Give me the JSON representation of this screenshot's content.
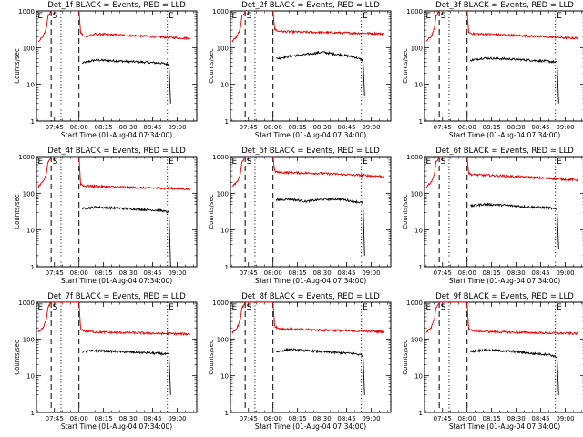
{
  "figure": {
    "x_label": "Start Time (01-Aug-04 07:34:00)",
    "y_label": "Counts/sec",
    "x_ticks": [
      "07:45",
      "08:00",
      "08:15",
      "08:30",
      "08:45",
      "09:00"
    ],
    "y_ticks": [
      "1",
      "10",
      "100",
      "1000"
    ],
    "colors": {
      "events": "#000000",
      "lld": "#e00000",
      "axes": "#000000"
    }
  },
  "chart_data": [
    {
      "type": "line",
      "title": "Det_1f BLACK = Events, RED = LLD",
      "scale": "log",
      "xlabel": "Start Time (01-Aug-04 07:34:00)",
      "ylabel": "Counts/sec",
      "ylim": [
        1,
        1000
      ],
      "x_ticks": [
        "07:45",
        "08:00",
        "08:15",
        "08:30",
        "08:45",
        "09:00"
      ],
      "markers": [
        {
          "label": "E",
          "x": "07:34"
        },
        {
          "label": "S",
          "x": "07:43"
        },
        {
          "label": "E",
          "x": "08:54"
        }
      ],
      "dashed_lines": [
        "07:43",
        "08:00"
      ],
      "dotted_lines": [
        "07:49",
        "08:54"
      ],
      "series": [
        {
          "name": "Events",
          "color": "#000000",
          "x": [
            "08:02",
            "08:10",
            "08:20",
            "08:30",
            "08:40",
            "08:50",
            "08:55",
            "08:56"
          ],
          "values": [
            38,
            46,
            44,
            42,
            40,
            38,
            35,
            3
          ]
        },
        {
          "name": "LLD",
          "color": "#e00000",
          "x": [
            "07:35",
            "07:38",
            "07:40",
            "07:41",
            "07:43",
            "07:50",
            "07:58",
            "08:00",
            "08:01",
            "08:03",
            "08:10",
            "08:20",
            "08:30",
            "08:40",
            "08:50",
            "09:00",
            "09:08"
          ],
          "values": [
            150,
            200,
            330,
            700,
            1000,
            1000,
            1000,
            1000,
            260,
            200,
            235,
            225,
            215,
            205,
            195,
            185,
            180
          ]
        }
      ]
    },
    {
      "type": "line",
      "title": "Det_2f BLACK = Events, RED = LLD",
      "scale": "log",
      "xlabel": "Start Time (01-Aug-04 07:34:00)",
      "ylabel": "Counts/sec",
      "ylim": [
        1,
        1000
      ],
      "x_ticks": [
        "07:45",
        "08:00",
        "08:15",
        "08:30",
        "08:45",
        "09:00"
      ],
      "markers": [
        {
          "label": "E",
          "x": "07:34"
        },
        {
          "label": "S",
          "x": "07:43"
        },
        {
          "label": "E",
          "x": "08:54"
        }
      ],
      "dashed_lines": [
        "07:43",
        "08:00"
      ],
      "dotted_lines": [
        "07:49",
        "08:54"
      ],
      "series": [
        {
          "name": "Events",
          "color": "#000000",
          "x": [
            "08:02",
            "08:10",
            "08:20",
            "08:30",
            "08:40",
            "08:50",
            "08:55",
            "08:56"
          ],
          "values": [
            50,
            58,
            65,
            75,
            65,
            55,
            45,
            5
          ]
        },
        {
          "name": "LLD",
          "color": "#e00000",
          "x": [
            "07:35",
            "07:38",
            "07:40",
            "07:41",
            "07:43",
            "07:50",
            "07:58",
            "08:00",
            "08:01",
            "08:03",
            "08:10",
            "08:20",
            "08:30",
            "08:40",
            "08:50",
            "09:00",
            "09:08"
          ],
          "values": [
            150,
            200,
            330,
            700,
            1000,
            1000,
            1000,
            1000,
            320,
            280,
            270,
            265,
            260,
            255,
            250,
            245,
            240
          ]
        }
      ]
    },
    {
      "type": "line",
      "title": "Det_3f BLACK = Events, RED = LLD",
      "scale": "log",
      "xlabel": "Start Time (01-Aug-04 07:34:00)",
      "ylabel": "Counts/sec",
      "ylim": [
        1,
        1000
      ],
      "x_ticks": [
        "07:45",
        "08:00",
        "08:15",
        "08:30",
        "08:45",
        "09:00"
      ],
      "markers": [
        {
          "label": "E",
          "x": "07:34"
        },
        {
          "label": "S",
          "x": "07:43"
        },
        {
          "label": "E",
          "x": "08:54"
        }
      ],
      "dashed_lines": [
        "07:43",
        "08:00"
      ],
      "dotted_lines": [
        "07:49",
        "08:54"
      ],
      "series": [
        {
          "name": "Events",
          "color": "#000000",
          "x": [
            "08:02",
            "08:10",
            "08:20",
            "08:30",
            "08:40",
            "08:50",
            "08:55",
            "08:56"
          ],
          "values": [
            45,
            52,
            50,
            48,
            45,
            42,
            40,
            3
          ]
        },
        {
          "name": "LLD",
          "color": "#e00000",
          "x": [
            "07:35",
            "07:38",
            "07:40",
            "07:41",
            "07:43",
            "07:50",
            "07:58",
            "08:00",
            "08:01",
            "08:03",
            "08:10",
            "08:20",
            "08:30",
            "08:40",
            "08:50",
            "09:00",
            "09:08"
          ],
          "values": [
            150,
            200,
            330,
            700,
            1000,
            1000,
            1000,
            1000,
            260,
            240,
            235,
            225,
            215,
            205,
            195,
            185,
            180
          ]
        }
      ]
    },
    {
      "type": "line",
      "title": "Det_4f BLACK = Events, RED = LLD",
      "scale": "log",
      "xlabel": "Start Time (01-Aug-04 07:34:00)",
      "ylabel": "Counts/sec",
      "ylim": [
        1,
        1000
      ],
      "x_ticks": [
        "07:45",
        "08:00",
        "08:15",
        "08:30",
        "08:45",
        "09:00"
      ],
      "markers": [
        {
          "label": "E",
          "x": "07:34"
        },
        {
          "label": "S",
          "x": "07:43"
        },
        {
          "label": "E",
          "x": "08:54"
        }
      ],
      "dashed_lines": [
        "07:43",
        "08:00"
      ],
      "dotted_lines": [
        "07:49",
        "08:54"
      ],
      "series": [
        {
          "name": "Events",
          "color": "#000000",
          "x": [
            "08:02",
            "08:10",
            "08:20",
            "08:30",
            "08:40",
            "08:50",
            "08:55",
            "08:56"
          ],
          "values": [
            38,
            42,
            40,
            38,
            36,
            34,
            30,
            1
          ]
        },
        {
          "name": "LLD",
          "color": "#e00000",
          "x": [
            "07:35",
            "07:38",
            "07:40",
            "07:41",
            "07:43",
            "07:50",
            "07:58",
            "08:00",
            "08:01",
            "08:03",
            "08:10",
            "08:20",
            "08:30",
            "08:40",
            "08:50",
            "09:00",
            "09:08"
          ],
          "values": [
            150,
            200,
            330,
            700,
            1000,
            1000,
            1000,
            1000,
            180,
            160,
            155,
            150,
            145,
            140,
            138,
            135,
            130
          ]
        }
      ]
    },
    {
      "type": "line",
      "title": "Det_5f BLACK = Events, RED = LLD",
      "scale": "log",
      "xlabel": "Start Time (01-Aug-04 07:34:00)",
      "ylabel": "Counts/sec",
      "ylim": [
        1,
        1000
      ],
      "x_ticks": [
        "07:45",
        "08:00",
        "08:15",
        "08:30",
        "08:45",
        "09:00"
      ],
      "markers": [
        {
          "label": "E",
          "x": "07:34"
        },
        {
          "label": "S",
          "x": "07:43"
        },
        {
          "label": "E",
          "x": "08:54"
        }
      ],
      "dashed_lines": [
        "07:43",
        "08:00"
      ],
      "dotted_lines": [
        "07:49",
        "08:54"
      ],
      "series": [
        {
          "name": "Events",
          "color": "#000000",
          "x": [
            "08:02",
            "08:10",
            "08:20",
            "08:30",
            "08:40",
            "08:50",
            "08:55",
            "08:56"
          ],
          "values": [
            65,
            70,
            60,
            68,
            70,
            60,
            55,
            2
          ]
        },
        {
          "name": "LLD",
          "color": "#e00000",
          "x": [
            "07:35",
            "07:38",
            "07:40",
            "07:41",
            "07:43",
            "07:50",
            "07:58",
            "08:00",
            "08:01",
            "08:03",
            "08:10",
            "08:20",
            "08:30",
            "08:40",
            "08:50",
            "09:00",
            "09:08"
          ],
          "values": [
            150,
            200,
            330,
            700,
            1000,
            1000,
            1000,
            1000,
            400,
            370,
            365,
            355,
            345,
            330,
            315,
            300,
            290
          ]
        }
      ]
    },
    {
      "type": "line",
      "title": "Det_6f BLACK = Events, RED = LLD",
      "scale": "log",
      "xlabel": "Start Time (01-Aug-04 07:34:00)",
      "ylabel": "Counts/sec",
      "ylim": [
        1,
        1000
      ],
      "x_ticks": [
        "07:45",
        "08:00",
        "08:15",
        "08:30",
        "08:45",
        "09:00"
      ],
      "markers": [
        {
          "label": "E",
          "x": "07:34"
        },
        {
          "label": "S",
          "x": "07:43"
        },
        {
          "label": "E",
          "x": "08:54"
        }
      ],
      "dashed_lines": [
        "07:43",
        "08:00"
      ],
      "dotted_lines": [
        "07:49",
        "08:54"
      ],
      "series": [
        {
          "name": "Events",
          "color": "#000000",
          "x": [
            "08:02",
            "08:10",
            "08:20",
            "08:30",
            "08:40",
            "08:50",
            "08:55",
            "08:56"
          ],
          "values": [
            45,
            50,
            48,
            45,
            42,
            40,
            36,
            3
          ]
        },
        {
          "name": "LLD",
          "color": "#e00000",
          "x": [
            "07:35",
            "07:38",
            "07:40",
            "07:41",
            "07:43",
            "07:50",
            "07:58",
            "08:00",
            "08:01",
            "08:03",
            "08:10",
            "08:20",
            "08:30",
            "08:40",
            "08:50",
            "09:00",
            "09:08"
          ],
          "values": [
            150,
            200,
            330,
            700,
            1000,
            1000,
            1000,
            1000,
            350,
            320,
            310,
            300,
            285,
            270,
            255,
            240,
            230
          ]
        }
      ]
    },
    {
      "type": "line",
      "title": "Det_7f BLACK = Events, RED = LLD",
      "scale": "log",
      "xlabel": "Start Time (01-Aug-04 07:34:00)",
      "ylabel": "Counts/sec",
      "ylim": [
        1,
        1000
      ],
      "x_ticks": [
        "07:45",
        "08:00",
        "08:15",
        "08:30",
        "08:45",
        "09:00"
      ],
      "markers": [
        {
          "label": "E",
          "x": "07:34"
        },
        {
          "label": "S",
          "x": "07:43"
        },
        {
          "label": "E",
          "x": "08:54"
        }
      ],
      "dashed_lines": [
        "07:43",
        "08:00"
      ],
      "dotted_lines": [
        "07:49",
        "08:54"
      ],
      "series": [
        {
          "name": "Events",
          "color": "#000000",
          "x": [
            "08:02",
            "08:10",
            "08:20",
            "08:30",
            "08:40",
            "08:50",
            "08:55",
            "08:56"
          ],
          "values": [
            45,
            48,
            46,
            44,
            42,
            40,
            38,
            3
          ]
        },
        {
          "name": "LLD",
          "color": "#e00000",
          "x": [
            "07:35",
            "07:38",
            "07:40",
            "07:41",
            "07:43",
            "07:50",
            "07:58",
            "08:00",
            "08:01",
            "08:03",
            "08:10",
            "08:20",
            "08:30",
            "08:40",
            "08:50",
            "09:00",
            "09:08"
          ],
          "values": [
            150,
            200,
            330,
            700,
            1000,
            1000,
            1000,
            1000,
            190,
            165,
            155,
            150,
            148,
            145,
            140,
            138,
            135
          ]
        }
      ]
    },
    {
      "type": "line",
      "title": "Det_8f BLACK = Events, RED = LLD",
      "scale": "log",
      "xlabel": "Start Time (01-Aug-04 07:34:00)",
      "ylabel": "Counts/sec",
      "ylim": [
        1,
        1000
      ],
      "x_ticks": [
        "07:45",
        "08:00",
        "08:15",
        "08:30",
        "08:45",
        "09:00"
      ],
      "markers": [
        {
          "label": "E",
          "x": "07:34"
        },
        {
          "label": "S",
          "x": "07:43"
        },
        {
          "label": "E",
          "x": "08:54"
        }
      ],
      "dashed_lines": [
        "07:43",
        "08:00"
      ],
      "dotted_lines": [
        "07:49",
        "08:54"
      ],
      "series": [
        {
          "name": "Events",
          "color": "#000000",
          "x": [
            "08:02",
            "08:10",
            "08:20",
            "08:30",
            "08:40",
            "08:50",
            "08:55",
            "08:56"
          ],
          "values": [
            45,
            52,
            48,
            45,
            42,
            40,
            36,
            3
          ]
        },
        {
          "name": "LLD",
          "color": "#e00000",
          "x": [
            "07:35",
            "07:38",
            "07:40",
            "07:41",
            "07:43",
            "07:50",
            "07:58",
            "08:00",
            "08:01",
            "08:03",
            "08:10",
            "08:20",
            "08:30",
            "08:40",
            "08:50",
            "09:00",
            "09:08"
          ],
          "values": [
            150,
            200,
            330,
            700,
            1000,
            1000,
            1000,
            1000,
            230,
            195,
            185,
            178,
            175,
            170,
            165,
            160,
            158
          ]
        }
      ]
    },
    {
      "type": "line",
      "title": "Det_9f BLACK = Events, RED = LLD",
      "scale": "log",
      "xlabel": "Start Time (01-Aug-04 07:34:00)",
      "ylabel": "Counts/sec",
      "ylim": [
        1,
        1000
      ],
      "x_ticks": [
        "07:45",
        "08:00",
        "08:15",
        "08:30",
        "08:45",
        "09:00"
      ],
      "markers": [
        {
          "label": "E",
          "x": "07:34"
        },
        {
          "label": "S",
          "x": "07:43"
        },
        {
          "label": "E",
          "x": "08:54"
        }
      ],
      "dashed_lines": [
        "07:43",
        "08:00"
      ],
      "dotted_lines": [
        "07:49",
        "08:54"
      ],
      "series": [
        {
          "name": "Events",
          "color": "#000000",
          "x": [
            "08:02",
            "08:10",
            "08:20",
            "08:30",
            "08:40",
            "08:50",
            "08:55",
            "08:56"
          ],
          "values": [
            45,
            50,
            48,
            45,
            40,
            38,
            32,
            3
          ]
        },
        {
          "name": "LLD",
          "color": "#e00000",
          "x": [
            "07:35",
            "07:38",
            "07:40",
            "07:41",
            "07:43",
            "07:50",
            "07:58",
            "08:00",
            "08:01",
            "08:03",
            "08:10",
            "08:20",
            "08:30",
            "08:40",
            "08:50",
            "09:00",
            "09:08"
          ],
          "values": [
            150,
            200,
            330,
            700,
            1000,
            1000,
            1000,
            1000,
            190,
            170,
            160,
            155,
            150,
            148,
            145,
            142,
            140
          ]
        }
      ]
    }
  ]
}
